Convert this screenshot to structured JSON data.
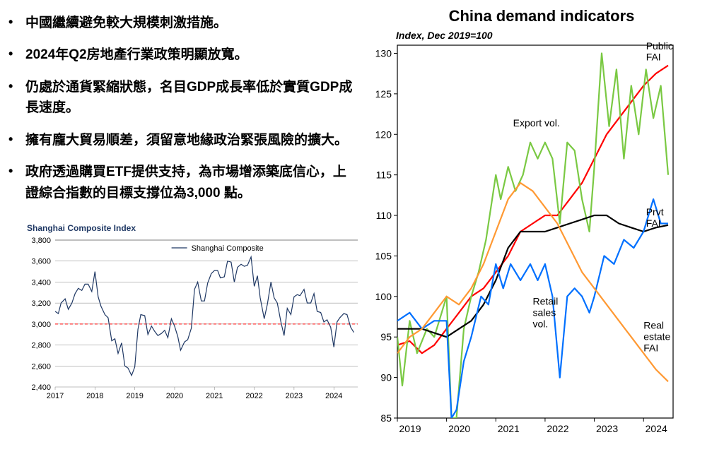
{
  "bullets": [
    "中國繼續避免較大規模刺激措施。",
    "2024年Q2房地產行業政策明顯放寬。",
    "仍處於通貨緊縮狀態，名目GDP成長率低於實質GDP成長速度。",
    "擁有龐大貿易順差，須留意地緣政治緊張風險的擴大。",
    "政府透過購買ETF提供支持，為市場增添築底信心，上證綜合指數的目標支撐位為3,000 點。"
  ],
  "shanghai_chart": {
    "title": "Shanghai Composite Index",
    "legend_label": "Shanghai Composite",
    "title_color": "#1f3864",
    "yticks": [
      2400,
      2600,
      2800,
      3000,
      3200,
      3400,
      3600,
      3800
    ],
    "ylim": [
      2400,
      3800
    ],
    "xticks": [
      2017,
      2018,
      2019,
      2020,
      2021,
      2022,
      2023,
      2024
    ],
    "xlim": [
      2017,
      2024.6
    ],
    "reference_line": {
      "y": 3000,
      "color": "#ff0000",
      "dash": "4,3"
    },
    "grid_color": "#7f7f7f",
    "line_color": "#1f3864",
    "line_width": 1.2,
    "data": [
      [
        2017.0,
        3120
      ],
      [
        2017.08,
        3100
      ],
      [
        2017.15,
        3200
      ],
      [
        2017.25,
        3240
      ],
      [
        2017.33,
        3140
      ],
      [
        2017.42,
        3200
      ],
      [
        2017.5,
        3290
      ],
      [
        2017.58,
        3340
      ],
      [
        2017.67,
        3320
      ],
      [
        2017.75,
        3380
      ],
      [
        2017.83,
        3380
      ],
      [
        2017.92,
        3310
      ],
      [
        2018.0,
        3500
      ],
      [
        2018.08,
        3260
      ],
      [
        2018.15,
        3170
      ],
      [
        2018.25,
        3090
      ],
      [
        2018.33,
        3060
      ],
      [
        2018.42,
        2840
      ],
      [
        2018.5,
        2860
      ],
      [
        2018.58,
        2720
      ],
      [
        2018.67,
        2820
      ],
      [
        2018.75,
        2600
      ],
      [
        2018.83,
        2580
      ],
      [
        2018.92,
        2510
      ],
      [
        2019.0,
        2590
      ],
      [
        2019.08,
        2950
      ],
      [
        2019.15,
        3090
      ],
      [
        2019.25,
        3080
      ],
      [
        2019.33,
        2900
      ],
      [
        2019.42,
        2980
      ],
      [
        2019.5,
        2930
      ],
      [
        2019.58,
        2890
      ],
      [
        2019.67,
        2910
      ],
      [
        2019.75,
        2940
      ],
      [
        2019.83,
        2870
      ],
      [
        2019.92,
        3050
      ],
      [
        2020.0,
        2980
      ],
      [
        2020.08,
        2880
      ],
      [
        2020.15,
        2750
      ],
      [
        2020.25,
        2830
      ],
      [
        2020.33,
        2850
      ],
      [
        2020.42,
        2960
      ],
      [
        2020.5,
        3330
      ],
      [
        2020.58,
        3400
      ],
      [
        2020.67,
        3220
      ],
      [
        2020.75,
        3220
      ],
      [
        2020.83,
        3390
      ],
      [
        2020.92,
        3480
      ],
      [
        2021.0,
        3510
      ],
      [
        2021.08,
        3510
      ],
      [
        2021.15,
        3440
      ],
      [
        2021.25,
        3450
      ],
      [
        2021.33,
        3600
      ],
      [
        2021.42,
        3590
      ],
      [
        2021.5,
        3400
      ],
      [
        2021.58,
        3540
      ],
      [
        2021.67,
        3570
      ],
      [
        2021.75,
        3550
      ],
      [
        2021.83,
        3560
      ],
      [
        2021.92,
        3640
      ],
      [
        2022.0,
        3360
      ],
      [
        2022.08,
        3460
      ],
      [
        2022.15,
        3250
      ],
      [
        2022.25,
        3050
      ],
      [
        2022.33,
        3190
      ],
      [
        2022.42,
        3400
      ],
      [
        2022.5,
        3250
      ],
      [
        2022.58,
        3200
      ],
      [
        2022.67,
        3020
      ],
      [
        2022.75,
        2890
      ],
      [
        2022.83,
        3150
      ],
      [
        2022.92,
        3090
      ],
      [
        2023.0,
        3260
      ],
      [
        2023.08,
        3280
      ],
      [
        2023.15,
        3270
      ],
      [
        2023.25,
        3330
      ],
      [
        2023.33,
        3200
      ],
      [
        2023.42,
        3200
      ],
      [
        2023.5,
        3290
      ],
      [
        2023.58,
        3120
      ],
      [
        2023.67,
        3110
      ],
      [
        2023.75,
        3020
      ],
      [
        2023.83,
        3040
      ],
      [
        2023.92,
        2970
      ],
      [
        2024.0,
        2780
      ],
      [
        2024.08,
        3020
      ],
      [
        2024.15,
        3060
      ],
      [
        2024.25,
        3100
      ],
      [
        2024.33,
        3090
      ],
      [
        2024.42,
        2970
      ],
      [
        2024.5,
        2920
      ]
    ]
  },
  "demand_chart": {
    "title": "China demand indicators",
    "subtitle": "Index, Dec 2019=100",
    "yticks": [
      85,
      90,
      95,
      100,
      105,
      110,
      115,
      120,
      125,
      130
    ],
    "ylim": [
      85,
      131
    ],
    "xticks": [
      2019,
      2020,
      2021,
      2022,
      2023,
      2024
    ],
    "xlim": [
      2019,
      2024.6
    ],
    "axis_color": "#000000",
    "line_width": 2.2,
    "series": {
      "public_fai": {
        "label": "Public\nFAI",
        "color": "#ff0000",
        "label_pos": [
          2024.05,
          130.5
        ],
        "label_color": "#ff0000",
        "data": [
          [
            2019.0,
            94
          ],
          [
            2019.25,
            94.5
          ],
          [
            2019.5,
            93
          ],
          [
            2019.75,
            94
          ],
          [
            2020.0,
            96
          ],
          [
            2020.25,
            98
          ],
          [
            2020.5,
            100
          ],
          [
            2020.75,
            101
          ],
          [
            2021.0,
            103
          ],
          [
            2021.25,
            105
          ],
          [
            2021.5,
            108
          ],
          [
            2021.75,
            109
          ],
          [
            2022.0,
            110
          ],
          [
            2022.25,
            110
          ],
          [
            2022.5,
            112
          ],
          [
            2022.75,
            114
          ],
          [
            2023.0,
            117
          ],
          [
            2023.25,
            120
          ],
          [
            2023.5,
            122
          ],
          [
            2023.75,
            124
          ],
          [
            2024.0,
            126
          ],
          [
            2024.25,
            127.5
          ],
          [
            2024.5,
            128.5
          ]
        ]
      },
      "export_vol": {
        "label": "Export vol.",
        "color": "#7ac943",
        "label_pos": [
          2021.35,
          121
        ],
        "label_color": "#000000",
        "data": [
          [
            2019.0,
            95
          ],
          [
            2019.1,
            89
          ],
          [
            2019.25,
            97
          ],
          [
            2019.4,
            93
          ],
          [
            2019.6,
            96
          ],
          [
            2019.75,
            95
          ],
          [
            2019.9,
            98
          ],
          [
            2020.0,
            100
          ],
          [
            2020.1,
            85
          ],
          [
            2020.2,
            85
          ],
          [
            2020.35,
            96
          ],
          [
            2020.5,
            100
          ],
          [
            2020.65,
            103
          ],
          [
            2020.8,
            107
          ],
          [
            2021.0,
            115
          ],
          [
            2021.1,
            112
          ],
          [
            2021.25,
            116
          ],
          [
            2021.4,
            113
          ],
          [
            2021.55,
            115
          ],
          [
            2021.7,
            119
          ],
          [
            2021.85,
            117
          ],
          [
            2022.0,
            119
          ],
          [
            2022.15,
            117
          ],
          [
            2022.3,
            109
          ],
          [
            2022.45,
            119
          ],
          [
            2022.6,
            118
          ],
          [
            2022.75,
            112
          ],
          [
            2022.9,
            108
          ],
          [
            2023.0,
            116
          ],
          [
            2023.15,
            130
          ],
          [
            2023.3,
            121
          ],
          [
            2023.45,
            128
          ],
          [
            2023.6,
            117
          ],
          [
            2023.75,
            126
          ],
          [
            2023.9,
            120
          ],
          [
            2024.05,
            128
          ],
          [
            2024.2,
            122
          ],
          [
            2024.35,
            126
          ],
          [
            2024.5,
            115
          ]
        ]
      },
      "prvt_fai": {
        "label": "Prvt\nFAI",
        "color": "#000000",
        "label_pos": [
          2024.05,
          110
        ],
        "label_color": "#000000",
        "data": [
          [
            2019.0,
            96
          ],
          [
            2019.5,
            96
          ],
          [
            2020.0,
            95
          ],
          [
            2020.25,
            96
          ],
          [
            2020.5,
            97
          ],
          [
            2020.75,
            99
          ],
          [
            2021.0,
            102
          ],
          [
            2021.25,
            106
          ],
          [
            2021.5,
            108
          ],
          [
            2021.75,
            108
          ],
          [
            2022.0,
            108
          ],
          [
            2022.25,
            108.5
          ],
          [
            2022.5,
            109
          ],
          [
            2022.75,
            109.5
          ],
          [
            2023.0,
            110
          ],
          [
            2023.25,
            110
          ],
          [
            2023.5,
            109
          ],
          [
            2023.75,
            108.5
          ],
          [
            2024.0,
            108
          ],
          [
            2024.25,
            108.5
          ],
          [
            2024.5,
            108.8
          ]
        ]
      },
      "retail": {
        "label": "Retail\nsales\nvol.",
        "color": "#0070ff",
        "label_pos": [
          2021.75,
          99
        ],
        "label_color": "#000000",
        "data": [
          [
            2019.0,
            97
          ],
          [
            2019.25,
            98
          ],
          [
            2019.5,
            96
          ],
          [
            2019.75,
            97
          ],
          [
            2020.0,
            97
          ],
          [
            2020.1,
            85
          ],
          [
            2020.2,
            86
          ],
          [
            2020.35,
            92
          ],
          [
            2020.5,
            95
          ],
          [
            2020.7,
            100
          ],
          [
            2020.85,
            99
          ],
          [
            2021.0,
            104
          ],
          [
            2021.15,
            101
          ],
          [
            2021.3,
            104
          ],
          [
            2021.5,
            102
          ],
          [
            2021.7,
            104
          ],
          [
            2021.85,
            102
          ],
          [
            2022.0,
            104
          ],
          [
            2022.15,
            100
          ],
          [
            2022.3,
            90
          ],
          [
            2022.45,
            100
          ],
          [
            2022.6,
            101
          ],
          [
            2022.75,
            100
          ],
          [
            2022.9,
            98
          ],
          [
            2023.0,
            100
          ],
          [
            2023.2,
            105
          ],
          [
            2023.4,
            104
          ],
          [
            2023.6,
            107
          ],
          [
            2023.8,
            106
          ],
          [
            2024.0,
            108
          ],
          [
            2024.2,
            112
          ],
          [
            2024.35,
            109
          ],
          [
            2024.5,
            109
          ]
        ]
      },
      "real_estate": {
        "label": "Real\nestate\nFAI",
        "color": "#ff9933",
        "label_pos": [
          2024.0,
          96
        ],
        "label_color": "#ff9933",
        "data": [
          [
            2019.0,
            93
          ],
          [
            2019.25,
            95
          ],
          [
            2019.5,
            96
          ],
          [
            2019.75,
            98
          ],
          [
            2020.0,
            100
          ],
          [
            2020.25,
            99
          ],
          [
            2020.5,
            101
          ],
          [
            2020.75,
            104
          ],
          [
            2021.0,
            108
          ],
          [
            2021.25,
            112
          ],
          [
            2021.5,
            114
          ],
          [
            2021.75,
            113
          ],
          [
            2022.0,
            111
          ],
          [
            2022.25,
            109
          ],
          [
            2022.5,
            106
          ],
          [
            2022.75,
            103
          ],
          [
            2023.0,
            101
          ],
          [
            2023.25,
            99
          ],
          [
            2023.5,
            97
          ],
          [
            2023.75,
            95
          ],
          [
            2024.0,
            93
          ],
          [
            2024.25,
            91
          ],
          [
            2024.5,
            89.5
          ]
        ]
      }
    }
  }
}
